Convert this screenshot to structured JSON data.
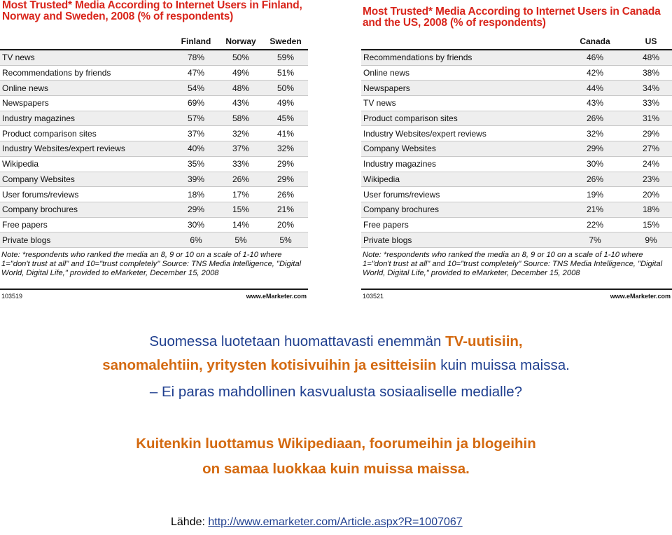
{
  "chart_data": [
    {
      "type": "table",
      "title": "Most Trusted* Media According to Internet Users in Finland, Norway and Sweden, 2008 (% of respondents)",
      "columns": [
        "Finland",
        "Norway",
        "Sweden"
      ],
      "rows": [
        {
          "label": "TV news",
          "values": [
            "78%",
            "50%",
            "59%"
          ]
        },
        {
          "label": "Recommendations by friends",
          "values": [
            "47%",
            "49%",
            "51%"
          ]
        },
        {
          "label": "Online news",
          "values": [
            "54%",
            "48%",
            "50%"
          ]
        },
        {
          "label": "Newspapers",
          "values": [
            "69%",
            "43%",
            "49%"
          ]
        },
        {
          "label": "Industry magazines",
          "values": [
            "57%",
            "58%",
            "45%"
          ]
        },
        {
          "label": "Product comparison sites",
          "values": [
            "37%",
            "32%",
            "41%"
          ]
        },
        {
          "label": "Industry Websites/expert reviews",
          "values": [
            "40%",
            "37%",
            "32%"
          ]
        },
        {
          "label": "Wikipedia",
          "values": [
            "35%",
            "33%",
            "29%"
          ]
        },
        {
          "label": "Company Websites",
          "values": [
            "39%",
            "26%",
            "29%"
          ]
        },
        {
          "label": "User forums/reviews",
          "values": [
            "18%",
            "17%",
            "26%"
          ]
        },
        {
          "label": "Company brochures",
          "values": [
            "29%",
            "15%",
            "21%"
          ]
        },
        {
          "label": "Free papers",
          "values": [
            "30%",
            "14%",
            "20%"
          ]
        },
        {
          "label": "Private blogs",
          "values": [
            "6%",
            "5%",
            "5%"
          ]
        }
      ],
      "note": "Note: *respondents who ranked the media an 8, 9 or 10 on a scale of 1-10 where 1=\"don't trust at all\" and 10=\"trust completely\" Source: TNS Media Intelligence, \"Digital World, Digital Life,\" provided to eMarketer, December 15, 2008",
      "id_label": "103519",
      "brand": "www.eMarketer.com"
    },
    {
      "type": "table",
      "title": "Most Trusted* Media According to Internet Users in Canada and the US, 2008 (% of respondents)",
      "columns": [
        "Canada",
        "US"
      ],
      "rows": [
        {
          "label": "Recommendations by friends",
          "values": [
            "46%",
            "48%"
          ]
        },
        {
          "label": "Online news",
          "values": [
            "42%",
            "38%"
          ]
        },
        {
          "label": "Newspapers",
          "values": [
            "44%",
            "34%"
          ]
        },
        {
          "label": "TV news",
          "values": [
            "43%",
            "33%"
          ]
        },
        {
          "label": "Product comparison sites",
          "values": [
            "26%",
            "31%"
          ]
        },
        {
          "label": "Industry Websites/expert reviews",
          "values": [
            "32%",
            "29%"
          ]
        },
        {
          "label": "Company Websites",
          "values": [
            "29%",
            "27%"
          ]
        },
        {
          "label": "Industry magazines",
          "values": [
            "30%",
            "24%"
          ]
        },
        {
          "label": "Wikipedia",
          "values": [
            "26%",
            "23%"
          ]
        },
        {
          "label": "User forums/reviews",
          "values": [
            "19%",
            "20%"
          ]
        },
        {
          "label": "Company brochures",
          "values": [
            "21%",
            "18%"
          ]
        },
        {
          "label": "Free papers",
          "values": [
            "22%",
            "15%"
          ]
        },
        {
          "label": "Private blogs",
          "values": [
            "7%",
            "9%"
          ]
        }
      ],
      "note": "Note: *respondents who ranked the media an 8, 9 or 10 on a scale of 1-10 where 1=\"don't trust at all\" and 10=\"trust completely\" Source: TNS Media Intelligence, \"Digital World, Digital Life,\" provided to eMarketer, December 15, 2008",
      "id_label": "103521",
      "brand": "www.eMarketer.com"
    }
  ],
  "text": {
    "line1_a": "Suomessa luotetaan huomattavasti enemmän ",
    "line1_b": "TV-uutisiin,",
    "line2_a": "sanomalehtiin, yritysten kotisivuihin ja esitteisiin",
    "line2_b": " kuin muissa maissa.",
    "line3": "– Ei paras mahdollinen kasvualusta sosiaaliselle medialle?",
    "line4": "Kuitenkin luottamus Wikipediaan, foorumeihin ja blogeihin",
    "line5": "on samaa luokkaa kuin muissa maissa.",
    "source_label": "Lähde: ",
    "source_url": "http://www.emarketer.com/Article.aspx?R=1007067"
  }
}
